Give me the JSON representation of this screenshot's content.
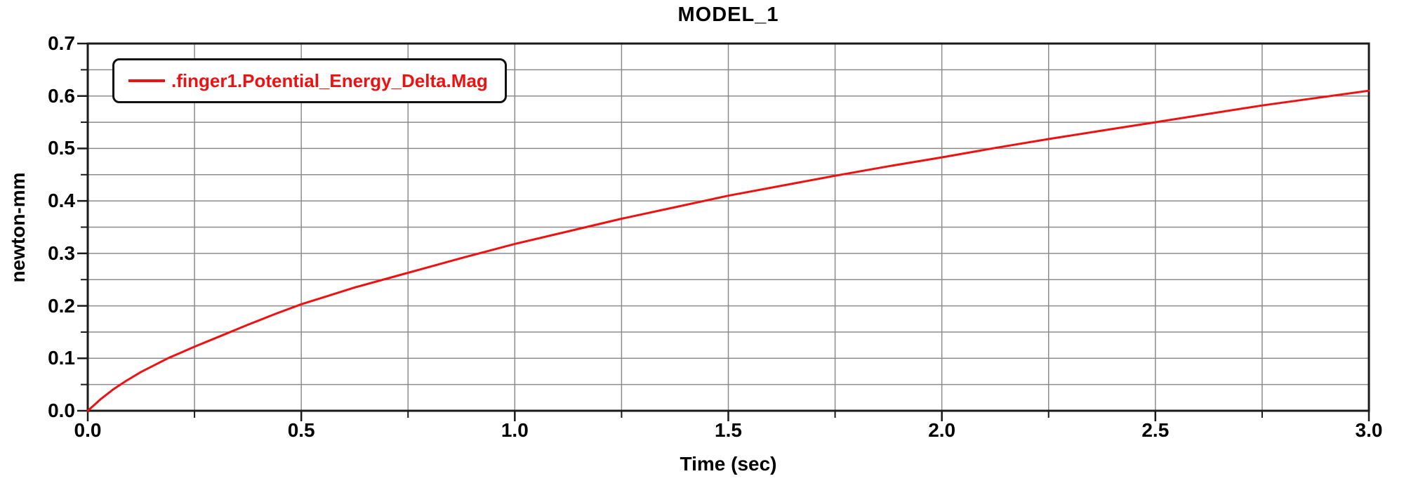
{
  "chart_data": {
    "type": "line",
    "title": "MODEL_1",
    "xlabel": "Time (sec)",
    "ylabel": "newton-mm",
    "xlim": [
      0,
      3
    ],
    "ylim": [
      0,
      0.7
    ],
    "x_tick_values": [
      0,
      0.5,
      1,
      1.5,
      2,
      2.5,
      3
    ],
    "x_tick_labels": [
      "0.0",
      "0.5",
      "1.0",
      "1.5",
      "2.0",
      "2.5",
      "3.0"
    ],
    "y_tick_values": [
      0,
      0.1,
      0.2,
      0.3,
      0.4,
      0.5,
      0.6,
      0.7
    ],
    "y_tick_labels": [
      "0.0",
      "0.1",
      "0.2",
      "0.3",
      "0.4",
      "0.5",
      "0.6",
      "0.7"
    ],
    "x_minor_tick_values": [
      0.25,
      0.75,
      1.25,
      1.75,
      2.25,
      2.75
    ],
    "y_minor_tick_values": [
      0.05,
      0.15,
      0.25,
      0.35,
      0.45,
      0.55,
      0.65
    ],
    "x_gridline_values": [
      0.25,
      0.5,
      0.75,
      1,
      1.25,
      1.5,
      1.75,
      2,
      2.25,
      2.5,
      2.75
    ],
    "y_gridline_values": [
      0.05,
      0.1,
      0.15,
      0.2,
      0.25,
      0.3,
      0.35,
      0.4,
      0.45,
      0.5,
      0.55,
      0.6,
      0.65
    ],
    "grid_color": "#8c8c8c",
    "frame_color": "#1a1a1a",
    "background_color": "#ffffff",
    "legend_position": "top-left",
    "grid": true,
    "series": [
      {
        "name": ".finger1.Potential_Energy_Delta.Mag",
        "color": "#ee1111",
        "points": [
          [
            0,
            0
          ],
          [
            0.03,
            0.022
          ],
          [
            0.06,
            0.041
          ],
          [
            0.09,
            0.057
          ],
          [
            0.125,
            0.074
          ],
          [
            0.1875,
            0.1
          ],
          [
            0.25,
            0.122
          ],
          [
            0.3125,
            0.143
          ],
          [
            0.375,
            0.164
          ],
          [
            0.4375,
            0.184
          ],
          [
            0.5,
            0.203
          ],
          [
            0.5625,
            0.219
          ],
          [
            0.625,
            0.235
          ],
          [
            0.6875,
            0.249
          ],
          [
            0.75,
            0.263
          ],
          [
            0.875,
            0.291
          ],
          [
            1,
            0.318
          ],
          [
            1.125,
            0.342
          ],
          [
            1.25,
            0.366
          ],
          [
            1.375,
            0.388
          ],
          [
            1.5,
            0.41
          ],
          [
            1.625,
            0.429
          ],
          [
            1.75,
            0.448
          ],
          [
            1.875,
            0.466
          ],
          [
            2,
            0.483
          ],
          [
            2.125,
            0.501
          ],
          [
            2.25,
            0.518
          ],
          [
            2.375,
            0.534
          ],
          [
            2.5,
            0.55
          ],
          [
            2.625,
            0.566
          ],
          [
            2.75,
            0.582
          ],
          [
            2.875,
            0.596
          ],
          [
            3,
            0.61
          ]
        ]
      }
    ]
  }
}
